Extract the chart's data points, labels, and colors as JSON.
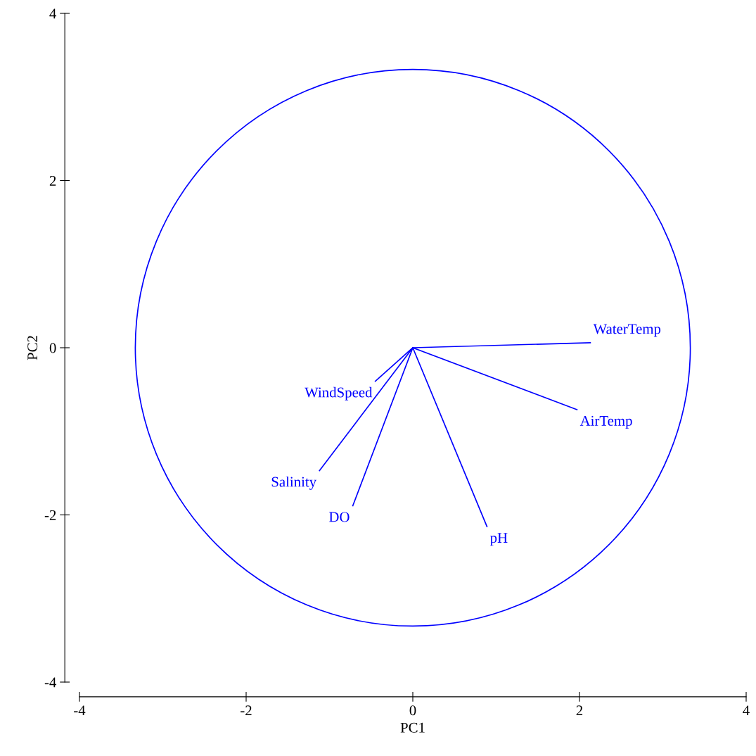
{
  "chart_data": {
    "type": "line",
    "xlabel": "PC1",
    "ylabel": "PC2",
    "xlim": [
      -4,
      4
    ],
    "ylim": [
      -4,
      4
    ],
    "xticks": [
      -4,
      -2,
      0,
      2,
      4
    ],
    "yticks": [
      -4,
      -2,
      0,
      2,
      4
    ],
    "grid": false,
    "legend": false,
    "series": [
      {
        "name": "WaterTemp",
        "color": "#0000ff",
        "x": [
          0,
          2.13
        ],
        "values": [
          0,
          0.06
        ]
      },
      {
        "name": "AirTemp",
        "color": "#0000ff",
        "x": [
          0,
          1.97
        ],
        "values": [
          0,
          -0.74
        ]
      },
      {
        "name": "pH",
        "color": "#0000ff",
        "x": [
          0,
          0.89
        ],
        "values": [
          0,
          -2.14
        ]
      },
      {
        "name": "DO",
        "color": "#0000ff",
        "x": [
          0,
          -0.72
        ],
        "values": [
          0,
          -1.89
        ]
      },
      {
        "name": "Salinity",
        "color": "#0000ff",
        "x": [
          0,
          -1.12
        ],
        "values": [
          0,
          -1.47
        ]
      },
      {
        "name": "WindSpeed",
        "color": "#0000ff",
        "x": [
          0,
          -0.45
        ],
        "values": [
          0,
          -0.4
        ]
      }
    ]
  }
}
